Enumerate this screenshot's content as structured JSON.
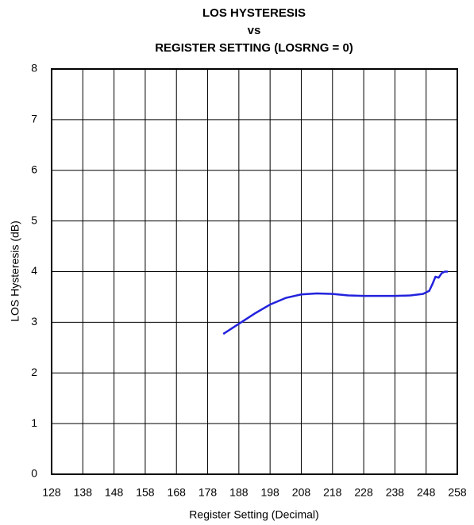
{
  "chart_data": {
    "type": "line",
    "title": [
      "LOS HYSTERESIS",
      "vs",
      "REGISTER SETTING (LOSRNG = 0)"
    ],
    "x_label": "Register Setting (Decimal)",
    "y_label": "LOS Hysteresis (dB)",
    "x": [
      183,
      188,
      193,
      198,
      203,
      208,
      213,
      218,
      223,
      228,
      233,
      238,
      243,
      247,
      249,
      250,
      251,
      252,
      253,
      254,
      255
    ],
    "series": [
      {
        "name": "LOS Hysteresis",
        "color": "#2222dd",
        "values": [
          2.77,
          2.97,
          3.17,
          3.35,
          3.48,
          3.55,
          3.57,
          3.56,
          3.53,
          3.52,
          3.52,
          3.52,
          3.53,
          3.56,
          3.62,
          3.75,
          3.9,
          3.88,
          3.97,
          4.0,
          4.0
        ]
      }
    ],
    "xlim": [
      128,
      258
    ],
    "xticks": [
      128,
      138,
      148,
      158,
      168,
      178,
      188,
      198,
      208,
      218,
      228,
      238,
      248,
      258
    ],
    "ylim": [
      0,
      8
    ],
    "yticks": [
      0,
      1,
      2,
      3,
      4,
      5,
      6,
      7,
      8
    ],
    "grid": true
  }
}
